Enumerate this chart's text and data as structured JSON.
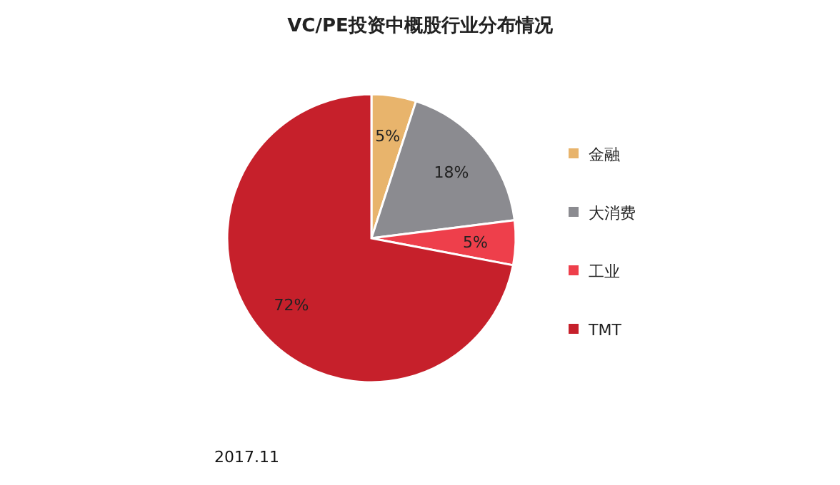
{
  "chart_data": {
    "type": "pie",
    "title": "VC/PE投资中概股行业分布情况",
    "categories": [
      "金融",
      "大消费",
      "工业",
      "TMT"
    ],
    "values": [
      5,
      18,
      5,
      72
    ],
    "value_labels": [
      "5%",
      "18%",
      "5%",
      "72%"
    ],
    "colors": [
      "#e8b46c",
      "#8b8b90",
      "#ee3f4b",
      "#c6202b"
    ],
    "legend": "right",
    "annotations": [
      "2017.11"
    ]
  }
}
